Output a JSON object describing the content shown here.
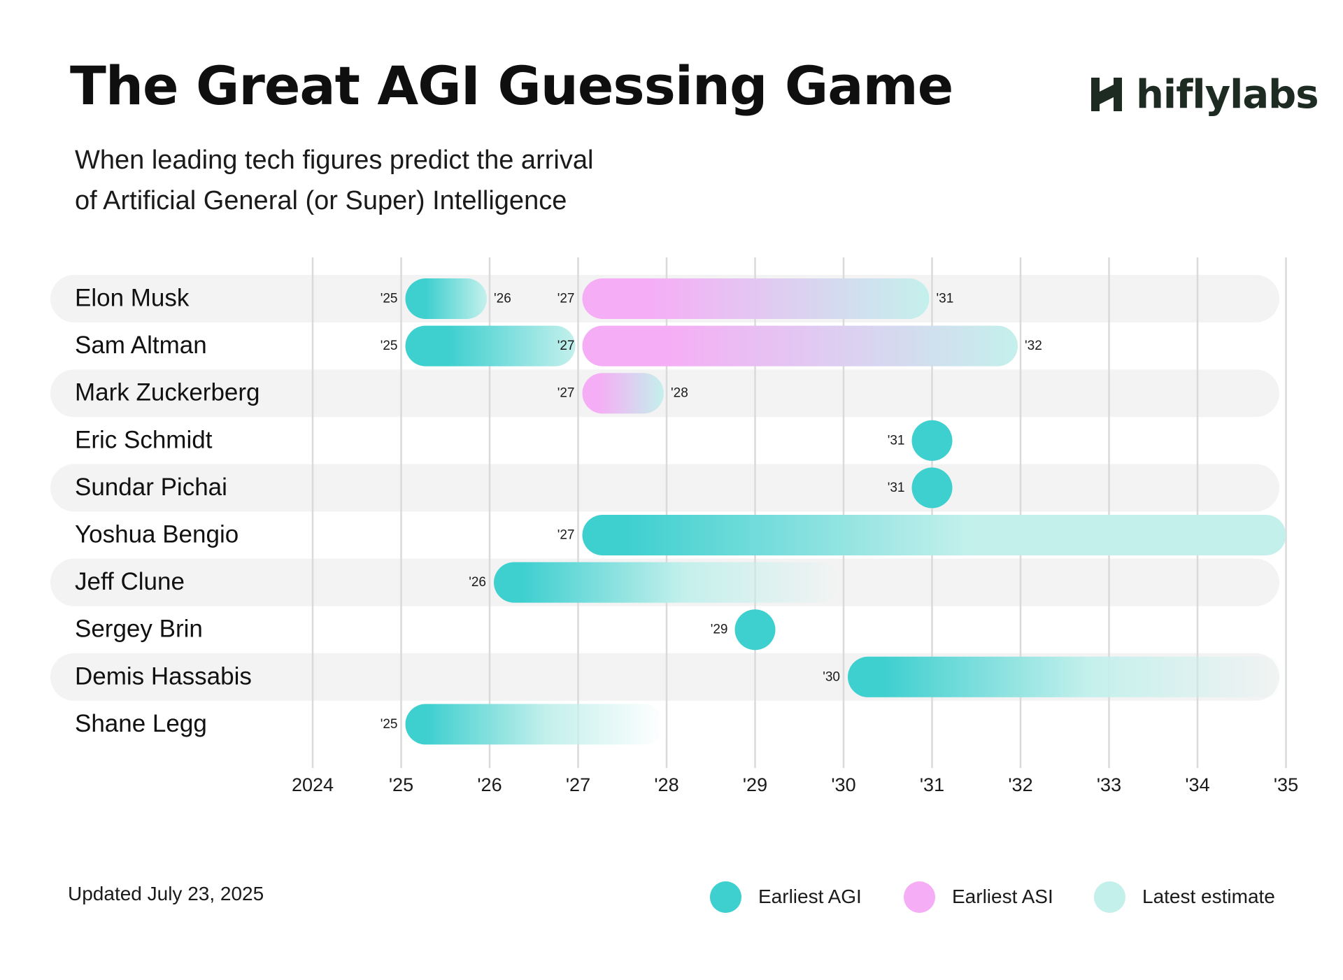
{
  "title": "The Great AGI Guessing Game",
  "subtitle_line1": "When leading tech figures predict the arrival",
  "subtitle_line2": "of Artificial General (or Super) Intelligence",
  "brand": {
    "name": "hiflylabs",
    "color": "#1d2b22"
  },
  "updated": "Updated July 23, 2025",
  "colors": {
    "earliest_agi": "#3ecfcf",
    "earliest_asi": "#f5aef5",
    "latest_estimate": "#c4f0ec",
    "row_band": "#f3f3f3",
    "gridline": "#dadada"
  },
  "chart_data": {
    "type": "timeline",
    "x_ticks": [
      "2024",
      "'25",
      "'26",
      "'27",
      "'28",
      "'29",
      "'30",
      "'31",
      "'32",
      "'33",
      "'34",
      "'35"
    ],
    "xlim": [
      2024,
      2035
    ],
    "legend": [
      {
        "key": "agi",
        "label": "Earliest AGI"
      },
      {
        "key": "asi",
        "label": "Earliest ASI"
      },
      {
        "key": "latest",
        "label": "Latest estimate"
      }
    ],
    "legend_position": "bottom-right",
    "rows": [
      {
        "name": "Elon Musk",
        "banded": true,
        "segments": [
          {
            "kind": "agi",
            "start": 2025,
            "end": 2026,
            "start_label": "'25",
            "end_label": "'26"
          },
          {
            "kind": "asi",
            "start": 2027,
            "end": 2031,
            "start_label": "'27",
            "end_label": "'31"
          }
        ]
      },
      {
        "name": "Sam Altman",
        "banded": false,
        "segments": [
          {
            "kind": "agi",
            "start": 2025,
            "end": 2027,
            "start_label": "'25",
            "end_label": ""
          },
          {
            "kind": "asi",
            "start": 2027,
            "end": 2032,
            "start_label": "'27",
            "end_label": "'32"
          }
        ]
      },
      {
        "name": "Mark Zuckerberg",
        "banded": true,
        "segments": [
          {
            "kind": "asi",
            "start": 2027,
            "end": 2028,
            "start_label": "'27",
            "end_label": "'28"
          }
        ]
      },
      {
        "name": "Eric Schmidt",
        "banded": false,
        "segments": [
          {
            "kind": "agi-point",
            "start": 2031,
            "end": 2031,
            "start_label": "'31",
            "end_label": ""
          }
        ]
      },
      {
        "name": "Sundar Pichai",
        "banded": true,
        "segments": [
          {
            "kind": "agi-point",
            "start": 2031,
            "end": 2031,
            "start_label": "'31",
            "end_label": ""
          }
        ]
      },
      {
        "name": "Yoshua Bengio",
        "banded": false,
        "segments": [
          {
            "kind": "agi-open",
            "start": 2027,
            "end": 2035,
            "start_label": "'27",
            "end_label": ""
          }
        ]
      },
      {
        "name": "Jeff Clune",
        "banded": true,
        "segments": [
          {
            "kind": "agi-fade",
            "start": 2026,
            "end": 2030,
            "start_label": "'26",
            "end_label": ""
          }
        ]
      },
      {
        "name": "Sergey Brin",
        "banded": false,
        "segments": [
          {
            "kind": "agi-point",
            "start": 2029,
            "end": 2029,
            "start_label": "'29",
            "end_label": ""
          }
        ]
      },
      {
        "name": "Demis Hassabis",
        "banded": true,
        "segments": [
          {
            "kind": "agi-fade",
            "start": 2030,
            "end": 2035,
            "start_label": "'30",
            "end_label": ""
          }
        ]
      },
      {
        "name": "Shane Legg",
        "banded": false,
        "segments": [
          {
            "kind": "agi-fade",
            "start": 2025,
            "end": 2028,
            "start_label": "'25",
            "end_label": ""
          }
        ]
      }
    ]
  }
}
